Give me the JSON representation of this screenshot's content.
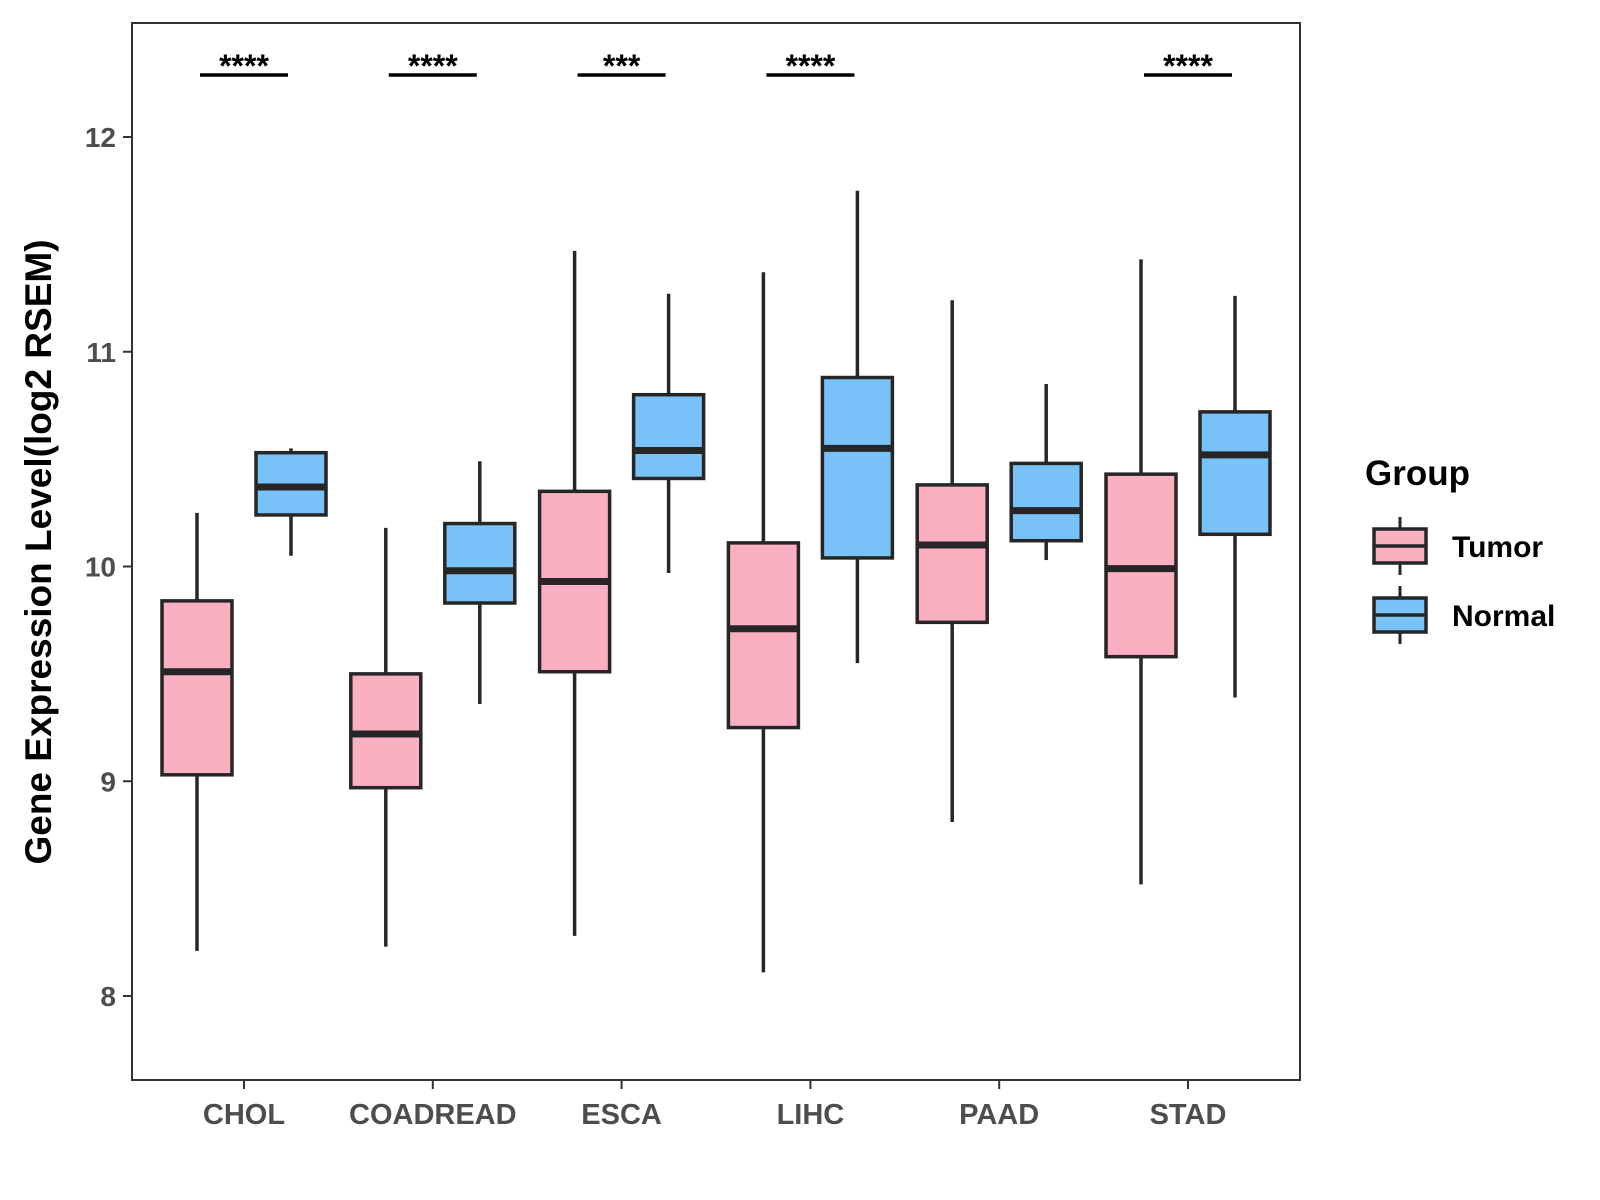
{
  "chart_data": {
    "type": "boxplot",
    "title": "",
    "xlabel": "",
    "ylabel": "Gene Expression Level(log2 RSEM)",
    "ylim": [
      7.6,
      12.5
    ],
    "yticks": [
      8,
      9,
      10,
      11,
      12
    ],
    "categories": [
      "CHOL",
      "COADREAD",
      "ESCA",
      "LIHC",
      "PAAD",
      "STAD"
    ],
    "legend": {
      "title": "Group",
      "position": "right"
    },
    "series": [
      {
        "name": "Tumor",
        "color": "#FBB0C1",
        "boxes": [
          {
            "min": 8.21,
            "q1": 9.03,
            "median": 9.51,
            "q3": 9.84,
            "max": 10.25
          },
          {
            "min": 8.23,
            "q1": 8.97,
            "median": 9.22,
            "q3": 9.5,
            "max": 10.18
          },
          {
            "min": 8.28,
            "q1": 9.51,
            "median": 9.93,
            "q3": 10.35,
            "max": 11.47
          },
          {
            "min": 8.11,
            "q1": 9.25,
            "median": 9.71,
            "q3": 10.11,
            "max": 11.37
          },
          {
            "min": 8.81,
            "q1": 9.74,
            "median": 10.1,
            "q3": 10.38,
            "max": 11.24
          },
          {
            "min": 8.52,
            "q1": 9.58,
            "median": 9.99,
            "q3": 10.43,
            "max": 11.43
          }
        ]
      },
      {
        "name": "Normal",
        "color": "#78C2F8",
        "boxes": [
          {
            "min": 10.05,
            "q1": 10.24,
            "median": 10.37,
            "q3": 10.53,
            "max": 10.55
          },
          {
            "min": 9.36,
            "q1": 9.83,
            "median": 9.98,
            "q3": 10.2,
            "max": 10.49
          },
          {
            "min": 9.97,
            "q1": 10.41,
            "median": 10.54,
            "q3": 10.8,
            "max": 11.27
          },
          {
            "min": 9.55,
            "q1": 10.04,
            "median": 10.55,
            "q3": 10.88,
            "max": 11.75
          },
          {
            "min": 10.03,
            "q1": 10.12,
            "median": 10.26,
            "q3": 10.48,
            "max": 10.85
          },
          {
            "min": 9.39,
            "q1": 10.15,
            "median": 10.52,
            "q3": 10.72,
            "max": 11.26
          }
        ]
      }
    ],
    "significance": [
      "****",
      "****",
      "***",
      "****",
      "",
      "****"
    ]
  }
}
